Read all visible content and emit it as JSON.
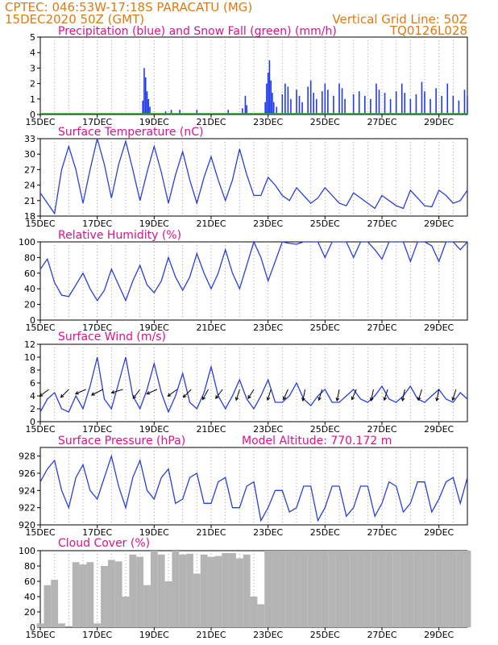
{
  "header": {
    "line1": "CPTEC:   046:53W-17:18S   PARACATU (MG)",
    "line2": "15DEC2020 50Z (GMT)",
    "grid_note": "Vertical Grid Line: 50Z",
    "code": "TQ0126L028"
  },
  "x_ticks": [
    "15DEC",
    "17DEC",
    "19DEC",
    "21DEC",
    "23DEC",
    "25DEC",
    "27DEC",
    "29DEC"
  ],
  "colors": {
    "line": "#2a3fd8",
    "precip": "#1f3ae6",
    "snow": "#22aa22",
    "cloud": "#b4b4b4",
    "arrow": "#000000",
    "header": "#e07a10",
    "title": "#e0108c"
  },
  "panels": {
    "precip": {
      "title": "Precipitation (blue) and Snow Fall (green) (mm/h)"
    },
    "temp": {
      "title": "Surface Temperature (nC)"
    },
    "rh": {
      "title": "Relative Humidity (%)"
    },
    "wind": {
      "title": "Surface Wind (m/s)"
    },
    "pres": {
      "title": "Surface Pressure (hPa)",
      "altitude": "Model Altitude: 770.172 m"
    },
    "cloud": {
      "title": "Cloud Cover (%)"
    }
  },
  "chart_data": [
    {
      "type": "bar",
      "title": "Precipitation (blue) and Snow Fall (green) (mm/h)",
      "x_unit": "days since 15DEC2020",
      "ylim": [
        0,
        5
      ],
      "yticks": [
        0,
        1,
        2,
        3,
        4,
        5
      ],
      "series": [
        {
          "name": "Precipitation",
          "points": [
            [
              3.6,
              0.9
            ],
            [
              3.65,
              3.0
            ],
            [
              3.7,
              2.4
            ],
            [
              3.75,
              1.5
            ],
            [
              3.8,
              1.0
            ],
            [
              3.85,
              0.5
            ],
            [
              4.4,
              0.2
            ],
            [
              4.6,
              0.3
            ],
            [
              4.9,
              0.3
            ],
            [
              5.5,
              0.3
            ],
            [
              6.6,
              0.3
            ],
            [
              7.1,
              0.4
            ],
            [
              7.2,
              1.2
            ],
            [
              7.25,
              0.6
            ],
            [
              7.9,
              0.8
            ],
            [
              7.95,
              2.0
            ],
            [
              8.0,
              2.7
            ],
            [
              8.05,
              3.5
            ],
            [
              8.1,
              2.2
            ],
            [
              8.15,
              1.4
            ],
            [
              8.2,
              0.8
            ],
            [
              8.3,
              0.5
            ],
            [
              8.5,
              1.3
            ],
            [
              8.6,
              2.0
            ],
            [
              8.7,
              1.8
            ],
            [
              8.8,
              1.0
            ],
            [
              9.0,
              1.6
            ],
            [
              9.1,
              1.2
            ],
            [
              9.2,
              0.8
            ],
            [
              9.4,
              1.8
            ],
            [
              9.5,
              2.2
            ],
            [
              9.6,
              1.4
            ],
            [
              9.7,
              1.0
            ],
            [
              9.9,
              1.5
            ],
            [
              10.0,
              2.0
            ],
            [
              10.1,
              1.6
            ],
            [
              10.3,
              1.2
            ],
            [
              10.5,
              2.0
            ],
            [
              10.6,
              1.7
            ],
            [
              10.7,
              1.0
            ],
            [
              11.0,
              1.3
            ],
            [
              11.2,
              1.5
            ],
            [
              11.4,
              1.2
            ],
            [
              11.6,
              1.0
            ],
            [
              11.8,
              2.0
            ],
            [
              11.9,
              1.6
            ],
            [
              12.1,
              1.4
            ],
            [
              12.3,
              1.0
            ],
            [
              12.5,
              1.5
            ],
            [
              12.7,
              2.0
            ],
            [
              12.8,
              1.4
            ],
            [
              13.0,
              1.0
            ],
            [
              13.2,
              1.3
            ],
            [
              13.4,
              2.1
            ],
            [
              13.5,
              1.5
            ],
            [
              13.7,
              1.0
            ],
            [
              13.9,
              1.7
            ],
            [
              14.1,
              1.2
            ],
            [
              14.3,
              2.0
            ],
            [
              14.5,
              1.2
            ],
            [
              14.7,
              0.9
            ],
            [
              14.9,
              1.6
            ],
            [
              15.0,
              1.2
            ]
          ]
        },
        {
          "name": "Snow Fall",
          "points": []
        }
      ]
    },
    {
      "type": "line",
      "title": "Surface Temperature (nC)",
      "x_unit": "days since 15DEC2020",
      "ylim": [
        18,
        33
      ],
      "yticks": [
        18,
        21,
        24,
        27,
        30,
        33
      ],
      "x": [
        0,
        0.25,
        0.5,
        0.75,
        1.0,
        1.25,
        1.5,
        1.75,
        2.0,
        2.25,
        2.5,
        2.75,
        3.0,
        3.25,
        3.5,
        3.75,
        4.0,
        4.25,
        4.5,
        4.75,
        5.0,
        5.25,
        5.5,
        5.75,
        6.0,
        6.25,
        6.5,
        6.75,
        7.0,
        7.25,
        7.5,
        7.75,
        8.0,
        8.25,
        8.5,
        8.75,
        9.0,
        9.25,
        9.5,
        9.75,
        10.0,
        10.25,
        10.5,
        10.75,
        11.0,
        11.25,
        11.5,
        11.75,
        12.0,
        12.25,
        12.5,
        12.75,
        13.0,
        13.25,
        13.5,
        13.75,
        14.0,
        14.25,
        14.5,
        14.75,
        15.0
      ],
      "values": [
        22.5,
        20.5,
        18.5,
        27.0,
        31.5,
        27.0,
        20.5,
        27.0,
        33.0,
        28.0,
        21.5,
        28.0,
        32.5,
        27.0,
        21.0,
        26.5,
        31.5,
        26.5,
        20.5,
        26.0,
        30.5,
        25.0,
        20.5,
        25.5,
        29.5,
        25.0,
        21.0,
        25.0,
        31.0,
        26.0,
        22.0,
        22.0,
        25.5,
        24.0,
        22.0,
        21.0,
        23.5,
        22.0,
        20.5,
        21.5,
        23.5,
        22.0,
        20.5,
        20.0,
        22.5,
        21.5,
        20.5,
        19.5,
        22.0,
        21.0,
        20.0,
        19.5,
        23.0,
        21.5,
        20.0,
        19.8,
        23.0,
        22.0,
        20.5,
        21.0,
        23.0
      ]
    },
    {
      "type": "line",
      "title": "Relative Humidity (%)",
      "x_unit": "days since 15DEC2020",
      "ylim": [
        0,
        100
      ],
      "yticks": [
        0,
        20,
        40,
        60,
        80,
        100
      ],
      "x": [
        0,
        0.25,
        0.5,
        0.75,
        1.0,
        1.25,
        1.5,
        1.75,
        2.0,
        2.25,
        2.5,
        2.75,
        3.0,
        3.25,
        3.5,
        3.75,
        4.0,
        4.25,
        4.5,
        4.75,
        5.0,
        5.25,
        5.5,
        5.75,
        6.0,
        6.25,
        6.5,
        6.75,
        7.0,
        7.25,
        7.5,
        7.75,
        8.0,
        8.25,
        8.5,
        8.75,
        9.0,
        9.25,
        9.5,
        9.75,
        10.0,
        10.25,
        10.5,
        10.75,
        11.0,
        11.25,
        11.5,
        11.75,
        12.0,
        12.25,
        12.5,
        12.75,
        13.0,
        13.25,
        13.5,
        13.75,
        14.0,
        14.25,
        14.5,
        14.75,
        15.0
      ],
      "values": [
        65,
        78,
        48,
        32,
        30,
        45,
        60,
        40,
        25,
        38,
        65,
        45,
        25,
        50,
        70,
        45,
        35,
        50,
        80,
        55,
        38,
        55,
        85,
        60,
        40,
        60,
        90,
        60,
        40,
        70,
        100,
        80,
        50,
        75,
        100,
        98,
        97,
        100,
        100,
        100,
        80,
        100,
        100,
        100,
        80,
        100,
        100,
        90,
        78,
        100,
        100,
        100,
        75,
        100,
        100,
        95,
        75,
        100,
        100,
        90,
        100
      ]
    },
    {
      "type": "line",
      "title": "Surface Wind (m/s)",
      "x_unit": "days since 15DEC2020",
      "ylim": [
        0,
        12
      ],
      "yticks": [
        0,
        2,
        4,
        6,
        8,
        10,
        12
      ],
      "x": [
        0,
        0.25,
        0.5,
        0.75,
        1.0,
        1.25,
        1.5,
        1.75,
        2.0,
        2.25,
        2.5,
        2.75,
        3.0,
        3.25,
        3.5,
        3.75,
        4.0,
        4.25,
        4.5,
        4.75,
        5.0,
        5.25,
        5.5,
        5.75,
        6.0,
        6.25,
        6.5,
        6.75,
        7.0,
        7.25,
        7.5,
        7.75,
        8.0,
        8.25,
        8.5,
        8.75,
        9.0,
        9.25,
        9.5,
        9.75,
        10.0,
        10.25,
        10.5,
        10.75,
        11.0,
        11.25,
        11.5,
        11.75,
        12.0,
        12.25,
        12.5,
        12.75,
        13.0,
        13.25,
        13.5,
        13.75,
        14.0,
        14.25,
        14.5,
        14.75,
        15.0
      ],
      "values": [
        1.5,
        3.5,
        4.5,
        2.0,
        1.5,
        4.0,
        2.0,
        5.5,
        10.0,
        3.5,
        2.0,
        6.0,
        10.0,
        4.0,
        2.0,
        5.0,
        9.0,
        4.5,
        1.5,
        4.0,
        7.5,
        3.0,
        2.0,
        4.5,
        8.5,
        4.0,
        2.0,
        4.0,
        6.5,
        3.5,
        2.0,
        4.0,
        6.5,
        3.0,
        3.0,
        4.0,
        6.0,
        3.5,
        2.5,
        4.0,
        5.0,
        3.0,
        3.0,
        4.0,
        5.0,
        3.5,
        3.0,
        4.0,
        5.5,
        3.5,
        3.0,
        4.0,
        5.5,
        3.5,
        3.0,
        4.0,
        5.0,
        3.5,
        3.0,
        4.5,
        3.5
      ],
      "arrows": [
        [
          0.3,
          -0.8,
          -0.6
        ],
        [
          1.0,
          -0.7,
          -0.7
        ],
        [
          1.6,
          -0.9,
          -0.4
        ],
        [
          2.2,
          -1.0,
          -0.5
        ],
        [
          2.9,
          -1.0,
          -0.3
        ],
        [
          3.5,
          -0.6,
          -0.8
        ],
        [
          4.1,
          -0.9,
          -0.4
        ],
        [
          4.8,
          -0.8,
          -0.6
        ],
        [
          5.3,
          -0.7,
          -0.7
        ],
        [
          5.9,
          -0.5,
          -0.9
        ],
        [
          6.4,
          -0.6,
          -0.8
        ],
        [
          7.0,
          -0.3,
          -0.95
        ],
        [
          7.5,
          -0.5,
          -0.8
        ],
        [
          8.1,
          -0.3,
          -0.95
        ],
        [
          8.7,
          -0.4,
          -0.9
        ],
        [
          9.3,
          -0.2,
          -1.0
        ],
        [
          9.9,
          -0.3,
          -0.95
        ],
        [
          10.5,
          -0.2,
          -1.0
        ],
        [
          11.1,
          -0.4,
          -0.9
        ],
        [
          11.7,
          -0.2,
          -1.0
        ],
        [
          12.2,
          -0.3,
          -0.95
        ],
        [
          12.8,
          -0.2,
          -1.0
        ],
        [
          13.4,
          -0.3,
          -0.95
        ],
        [
          14.0,
          -0.2,
          -1.0
        ],
        [
          14.6,
          -0.3,
          -0.95
        ]
      ]
    },
    {
      "type": "line",
      "title": "Surface Pressure (hPa)",
      "x_unit": "days since 15DEC2020",
      "ylim": [
        920,
        929
      ],
      "yticks": [
        920,
        922,
        924,
        926,
        928
      ],
      "x": [
        0,
        0.25,
        0.5,
        0.75,
        1.0,
        1.25,
        1.5,
        1.75,
        2.0,
        2.25,
        2.5,
        2.75,
        3.0,
        3.25,
        3.5,
        3.75,
        4.0,
        4.25,
        4.5,
        4.75,
        5.0,
        5.25,
        5.5,
        5.75,
        6.0,
        6.25,
        6.5,
        6.75,
        7.0,
        7.25,
        7.5,
        7.75,
        8.0,
        8.25,
        8.5,
        8.75,
        9.0,
        9.25,
        9.5,
        9.75,
        10.0,
        10.25,
        10.5,
        10.75,
        11.0,
        11.25,
        11.5,
        11.75,
        12.0,
        12.25,
        12.5,
        12.75,
        13.0,
        13.25,
        13.5,
        13.75,
        14.0,
        14.25,
        14.5,
        14.75,
        15.0
      ],
      "values": [
        925.0,
        926.5,
        927.5,
        924.0,
        922.0,
        925.5,
        927.0,
        924.0,
        923.0,
        925.5,
        928.0,
        924.5,
        922.0,
        925.5,
        927.5,
        924.0,
        923.0,
        925.5,
        926.5,
        922.5,
        923.0,
        925.5,
        926.0,
        922.5,
        922.5,
        925.0,
        925.5,
        922.0,
        922.0,
        924.5,
        925.0,
        920.5,
        922.0,
        924.0,
        924.0,
        921.5,
        922.0,
        924.5,
        924.5,
        920.5,
        922.0,
        924.5,
        924.5,
        921.0,
        922.0,
        924.5,
        924.5,
        921.0,
        922.5,
        925.0,
        924.5,
        921.5,
        922.5,
        925.0,
        925.0,
        921.5,
        923.0,
        925.0,
        925.5,
        922.5,
        925.5
      ]
    },
    {
      "type": "area",
      "title": "Cloud Cover (%)",
      "x_unit": "days since 15DEC2020",
      "ylim": [
        0,
        100
      ],
      "yticks": [
        0,
        20,
        40,
        60,
        80,
        100
      ],
      "x": [
        0,
        0.25,
        0.5,
        0.75,
        1.0,
        1.25,
        1.5,
        1.75,
        2.0,
        2.25,
        2.5,
        2.75,
        3.0,
        3.25,
        3.5,
        3.75,
        4.0,
        4.25,
        4.5,
        4.75,
        5.0,
        5.25,
        5.5,
        5.75,
        6.0,
        6.25,
        6.5,
        6.75,
        7.0,
        7.25,
        7.5,
        7.75,
        8.0,
        8.25,
        8.5,
        8.75,
        9.0,
        9.25,
        9.5,
        9.75,
        10.0,
        10.25,
        10.5,
        10.75,
        11.0,
        11.25,
        11.5,
        11.75,
        12.0,
        12.25,
        12.5,
        12.75,
        13.0,
        13.25,
        13.5,
        13.75,
        14.0,
        14.25,
        14.5,
        14.75,
        15.0
      ],
      "values": [
        5,
        55,
        62,
        5,
        0,
        85,
        82,
        85,
        5,
        80,
        88,
        86,
        40,
        95,
        92,
        55,
        100,
        95,
        60,
        100,
        95,
        96,
        70,
        95,
        92,
        93,
        97,
        97,
        90,
        95,
        40,
        30,
        100,
        100,
        100,
        100,
        100,
        100,
        100,
        100,
        100,
        100,
        100,
        100,
        100,
        100,
        100,
        100,
        100,
        100,
        100,
        100,
        100,
        100,
        100,
        100,
        100,
        100,
        100,
        100,
        100
      ]
    }
  ]
}
